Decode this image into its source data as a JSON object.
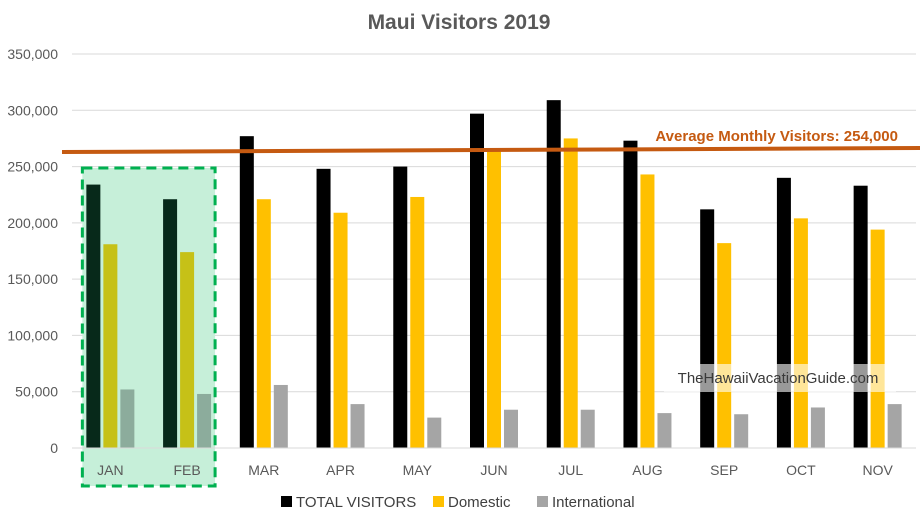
{
  "chart_data": {
    "type": "bar",
    "title": "Maui Visitors 2019",
    "categories": [
      "JAN",
      "FEB",
      "MAR",
      "APR",
      "MAY",
      "JUN",
      "JUL",
      "AUG",
      "SEP",
      "OCT",
      "NOV"
    ],
    "series": [
      {
        "name": "TOTAL VISITORS",
        "color": "#000000",
        "values": [
          234000,
          221000,
          277000,
          248000,
          250000,
          297000,
          309000,
          273000,
          212000,
          240000,
          233000
        ]
      },
      {
        "name": "Domestic",
        "color": "#FFC000",
        "values": [
          181000,
          174000,
          221000,
          209000,
          223000,
          264000,
          275000,
          243000,
          182000,
          204000,
          194000
        ]
      },
      {
        "name": "International",
        "color": "#A5A5A5",
        "values": [
          52000,
          48000,
          56000,
          39000,
          27000,
          34000,
          34000,
          31000,
          30000,
          36000,
          39000
        ]
      }
    ],
    "ylim": [
      0,
      350000
    ],
    "yticks": [
      "0",
      "50,000",
      "100,000",
      "150,000",
      "200,000",
      "250,000",
      "300,000",
      "350,000"
    ],
    "grid": true,
    "legend_position": "bottom",
    "average_line": {
      "label": "Average Monthly Visitors: 254,000",
      "value": 254000,
      "color": "#C55A11"
    },
    "highlight": {
      "categories": [
        "JAN",
        "FEB"
      ],
      "fill": "#C6EFD9",
      "border": "#00B050"
    },
    "watermark": "TheHawaiiVacationGuide.com"
  }
}
